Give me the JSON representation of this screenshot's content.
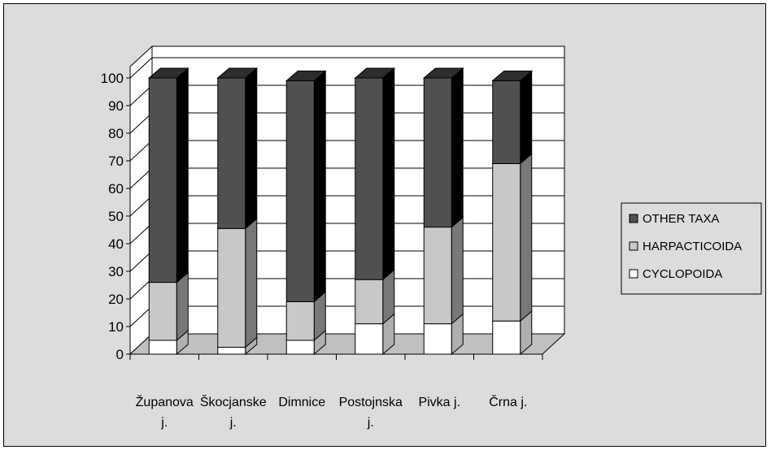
{
  "chart_data": {
    "type": "bar",
    "stacked": true,
    "style": "3d-column",
    "categories": [
      [
        "Županova",
        "j."
      ],
      [
        "Škocjanske",
        "j."
      ],
      [
        "Dimnice"
      ],
      [
        "Postojnska",
        "j."
      ],
      [
        "Pivka j."
      ],
      [
        "Črna j."
      ]
    ],
    "series": [
      {
        "name": "CYCLOPOIDA",
        "values": [
          5,
          2.5,
          5,
          11,
          11,
          12
        ],
        "color": "#ffffff"
      },
      {
        "name": "HARPACTICOIDA",
        "values": [
          21,
          43,
          14,
          16,
          35,
          57
        ],
        "color": "#c8c8c8"
      },
      {
        "name": "OTHER TAXA",
        "values": [
          74,
          54.5,
          80,
          73,
          54,
          30
        ],
        "color": "#505050"
      }
    ],
    "yticks": [
      "0",
      "10",
      "20",
      "30",
      "40",
      "50",
      "60",
      "70",
      "80",
      "90",
      "100"
    ],
    "ylim": [
      0,
      100
    ],
    "grid": true,
    "legend_position": "right",
    "title": "",
    "xlabel": "",
    "ylabel": ""
  }
}
